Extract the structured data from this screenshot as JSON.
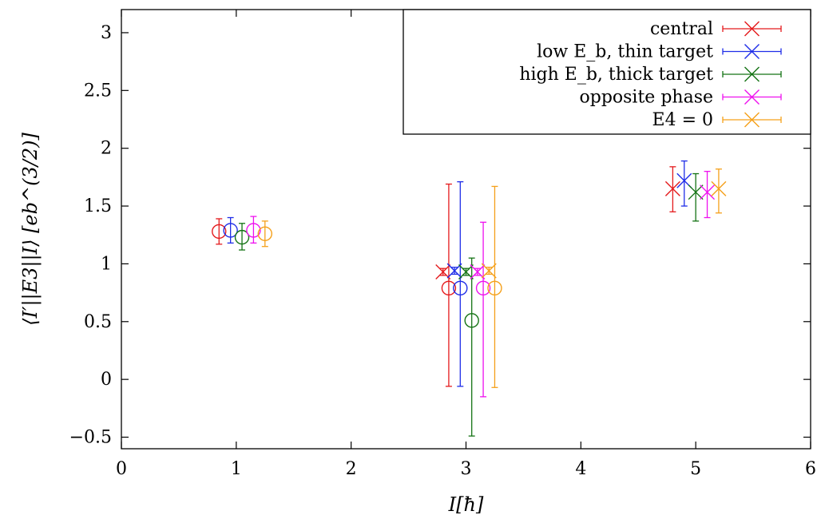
{
  "chart_data": {
    "type": "scatter",
    "title": "",
    "xlabel": "I[ħ]",
    "ylabel": "⟨I′||E3||I⟩ [eb^(3/2)]",
    "xlim": [
      0,
      6
    ],
    "ylim": [
      -0.6,
      3.2
    ],
    "x_ticks": [
      0,
      1,
      2,
      3,
      4,
      5,
      6
    ],
    "y_ticks": [
      -0.5,
      0,
      0.5,
      1,
      1.5,
      2,
      2.5,
      3
    ],
    "x_tick_labels": [
      "0",
      "1",
      "2",
      "3",
      "4",
      "5",
      "6"
    ],
    "y_tick_labels": [
      "−0.5",
      "0",
      "0.5",
      "1",
      "1.5",
      "2",
      "2.5",
      "3"
    ],
    "grid": false,
    "legend_position": "top-right",
    "series": [
      {
        "name": "central",
        "color": "#e41a1c",
        "cross_points": [
          {
            "x": 2.8,
            "y": 0.93,
            "yerr_low": 0.9,
            "yerr_high": 0.96
          },
          {
            "x": 4.8,
            "y": 1.65,
            "yerr_low": 1.45,
            "yerr_high": 1.84
          }
        ],
        "circle_points": [
          {
            "x": 0.85,
            "y": 1.28,
            "yerr_low": 1.17,
            "yerr_high": 1.39
          },
          {
            "x": 2.85,
            "y": 0.79,
            "yerr_low": -0.06,
            "yerr_high": 1.69
          }
        ]
      },
      {
        "name": "low E_b, thin target",
        "color": "#1f2de8",
        "cross_points": [
          {
            "x": 2.9,
            "y": 0.94,
            "yerr_low": 0.91,
            "yerr_high": 0.97
          },
          {
            "x": 4.9,
            "y": 1.72,
            "yerr_low": 1.5,
            "yerr_high": 1.89
          }
        ],
        "circle_points": [
          {
            "x": 0.95,
            "y": 1.29,
            "yerr_low": 1.18,
            "yerr_high": 1.4
          },
          {
            "x": 2.95,
            "y": 0.79,
            "yerr_low": -0.06,
            "yerr_high": 1.71
          }
        ]
      },
      {
        "name": "high E_b, thick target",
        "color": "#147314",
        "cross_points": [
          {
            "x": 3.0,
            "y": 0.93,
            "yerr_low": 0.9,
            "yerr_high": 0.96
          },
          {
            "x": 5.0,
            "y": 1.62,
            "yerr_low": 1.37,
            "yerr_high": 1.78
          }
        ],
        "circle_points": [
          {
            "x": 1.05,
            "y": 1.23,
            "yerr_low": 1.12,
            "yerr_high": 1.35
          },
          {
            "x": 3.05,
            "y": 0.51,
            "yerr_low": -0.49,
            "yerr_high": 1.05
          }
        ]
      },
      {
        "name": "opposite phase",
        "color": "#ee11ee",
        "cross_points": [
          {
            "x": 3.1,
            "y": 0.93,
            "yerr_low": 0.9,
            "yerr_high": 0.96
          },
          {
            "x": 5.1,
            "y": 1.62,
            "yerr_low": 1.4,
            "yerr_high": 1.8
          }
        ],
        "circle_points": [
          {
            "x": 1.15,
            "y": 1.29,
            "yerr_low": 1.18,
            "yerr_high": 1.41
          },
          {
            "x": 3.15,
            "y": 0.79,
            "yerr_low": -0.15,
            "yerr_high": 1.36
          }
        ]
      },
      {
        "name": "E4 = 0",
        "color": "#f5a01a",
        "cross_points": [
          {
            "x": 3.2,
            "y": 0.94,
            "yerr_low": 0.91,
            "yerr_high": 0.97
          },
          {
            "x": 5.2,
            "y": 1.65,
            "yerr_low": 1.44,
            "yerr_high": 1.82
          }
        ],
        "circle_points": [
          {
            "x": 1.25,
            "y": 1.26,
            "yerr_low": 1.15,
            "yerr_high": 1.37
          },
          {
            "x": 3.25,
            "y": 0.79,
            "yerr_low": -0.07,
            "yerr_high": 1.67
          }
        ]
      }
    ]
  }
}
